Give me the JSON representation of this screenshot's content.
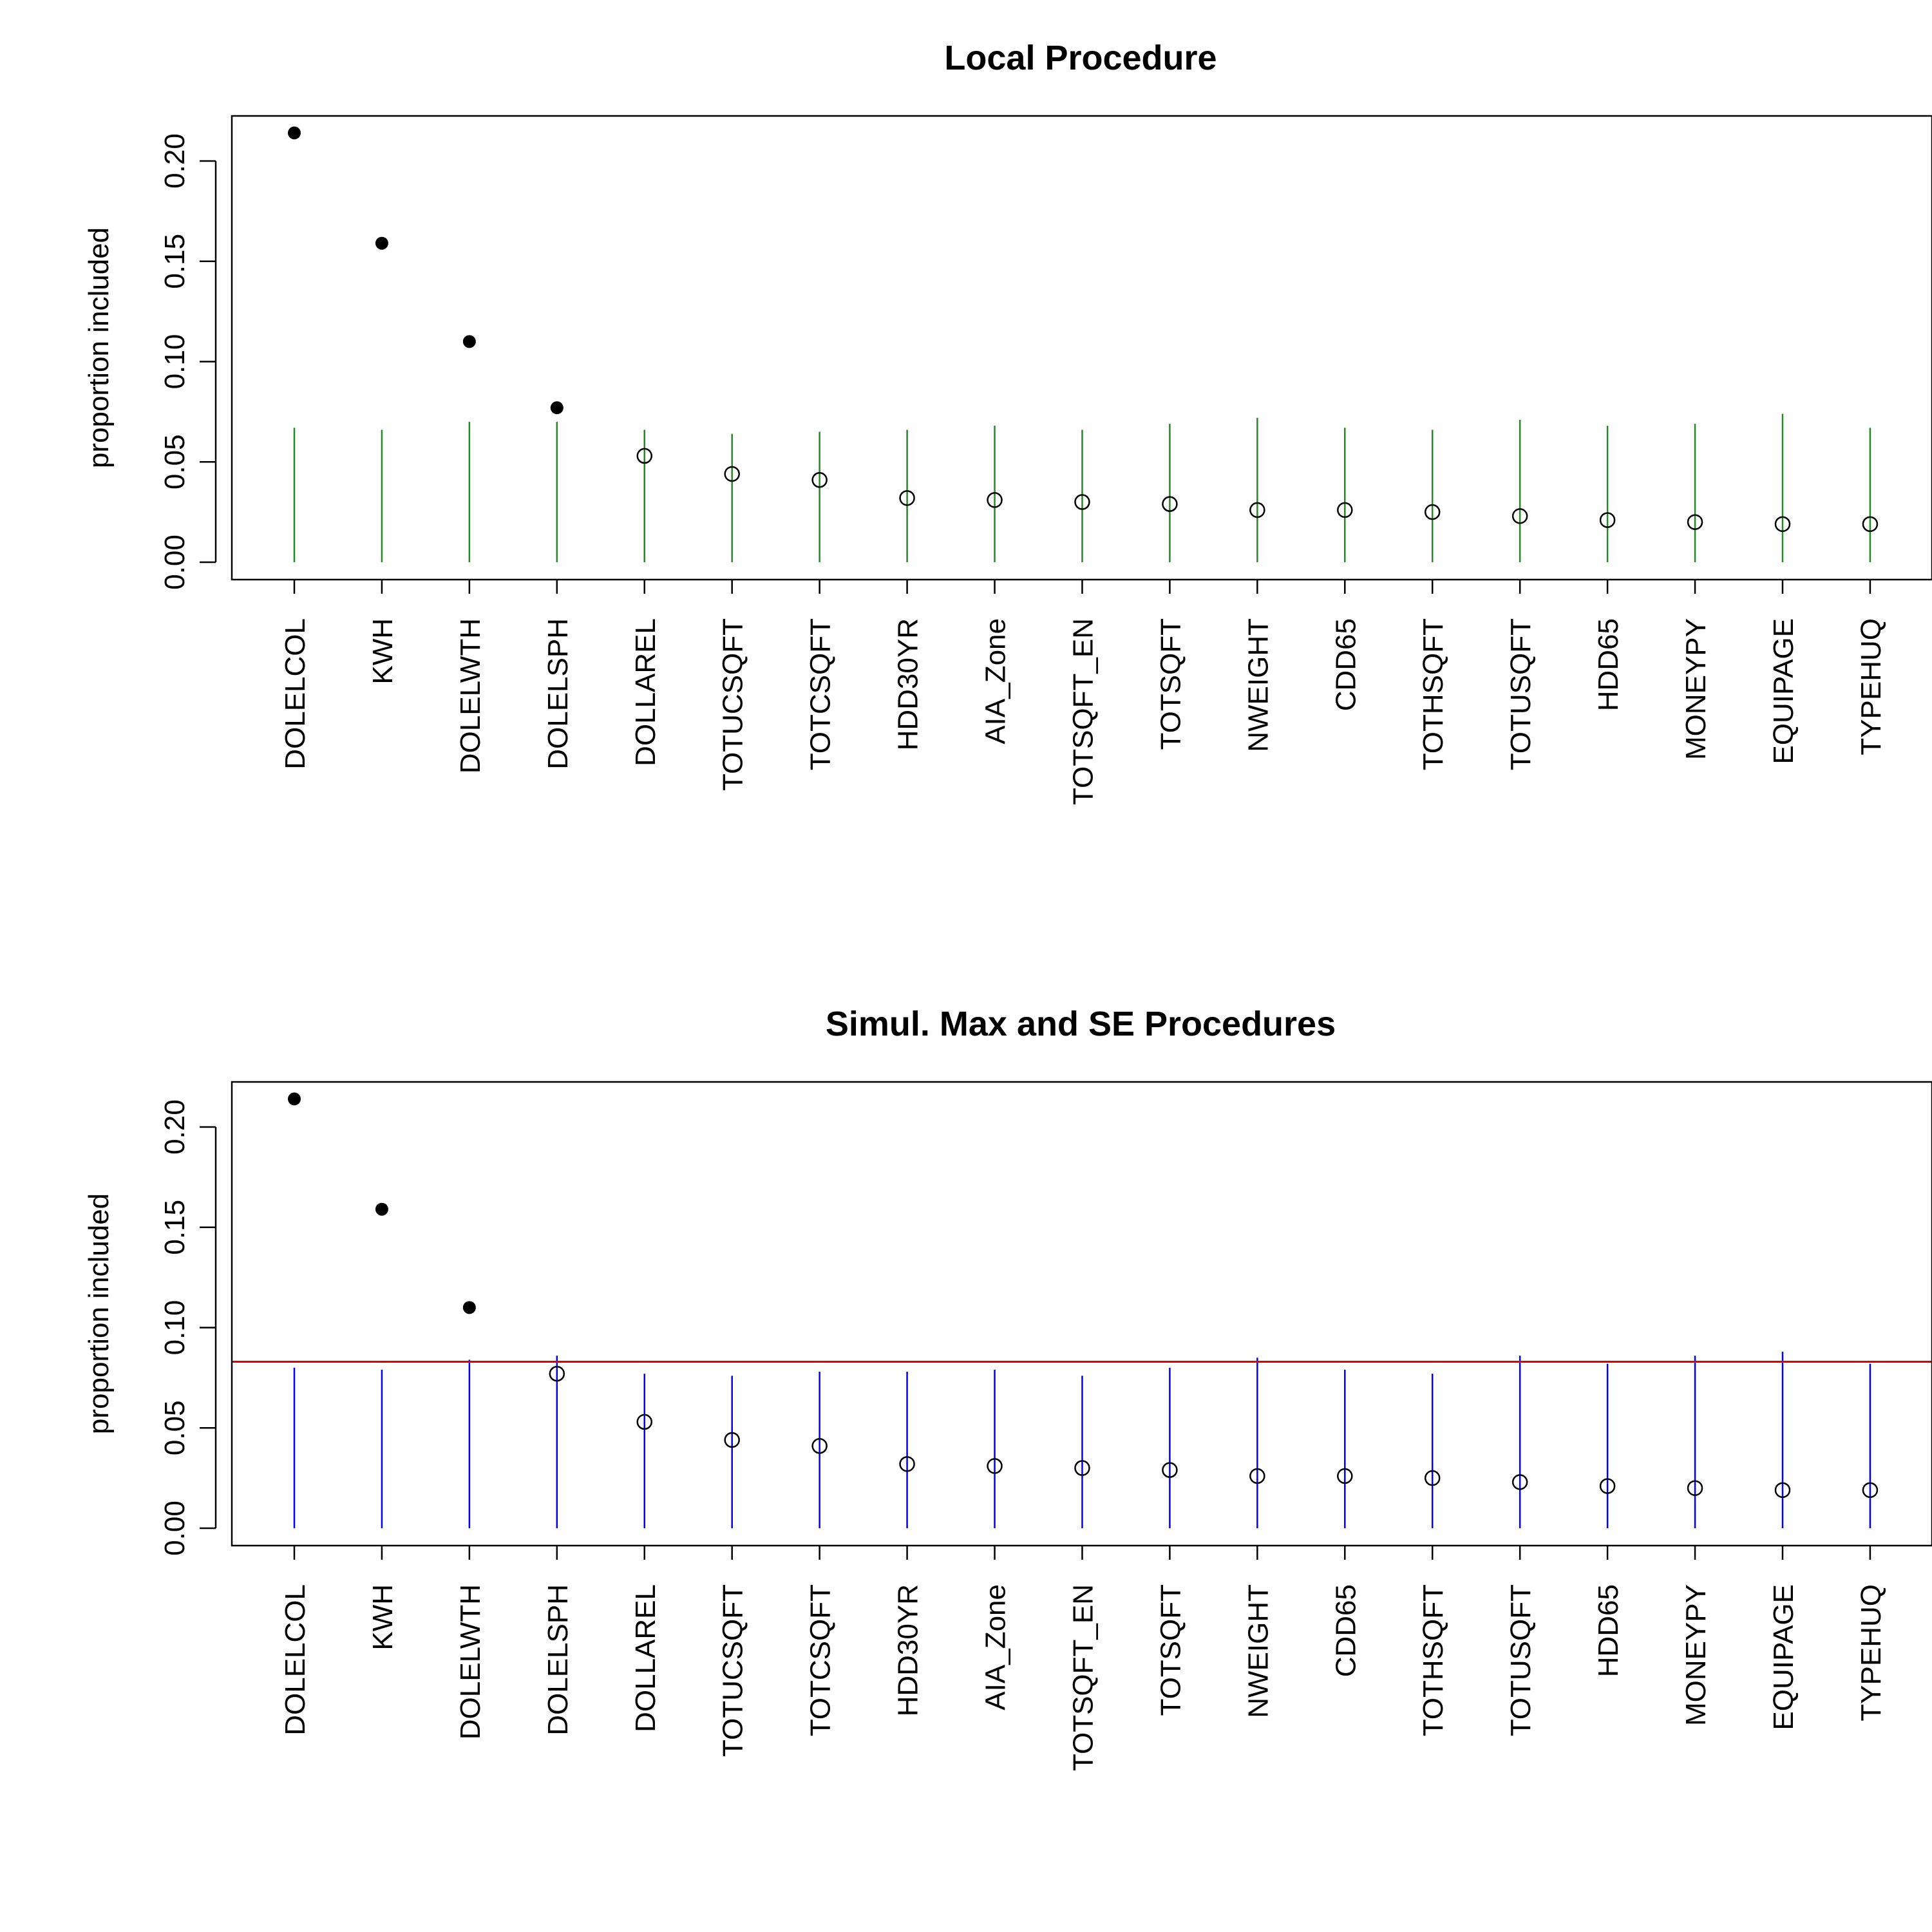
{
  "colors": {
    "local_threshold": "#228B22",
    "simul_threshold": "#0000FF",
    "se_line": "#E00000",
    "point": "#000000"
  },
  "chart_data": [
    {
      "type": "scatter",
      "title": "Local Procedure",
      "ylabel": "proportion included",
      "xlabel": "",
      "ylim": [
        0,
        0.2
      ],
      "yticks": [
        "0.00",
        "0.05",
        "0.10",
        "0.15",
        "0.20"
      ],
      "ytick_values": [
        0,
        0.05,
        0.1,
        0.15,
        0.2
      ],
      "categories": [
        "DOLELCOL",
        "KWH",
        "DOLELWTH",
        "DOLELSPH",
        "DOLLAREL",
        "TOTUCSQFT",
        "TOTCSQFT",
        "HDD30YR",
        "AIA_Zone",
        "TOTSQFT_EN",
        "TOTSQFT",
        "NWEIGHT",
        "CDD65",
        "TOTHSQFT",
        "TOTUSQFT",
        "HDD65",
        "MONEYPY",
        "EQUIPAGE",
        "TYPEHUQ"
      ],
      "values": [
        0.214,
        0.159,
        0.11,
        0.077,
        0.053,
        0.044,
        0.041,
        0.032,
        0.031,
        0.03,
        0.029,
        0.026,
        0.026,
        0.025,
        0.023,
        0.021,
        0.02,
        0.019,
        0.019
      ],
      "selected": [
        true,
        true,
        true,
        true,
        false,
        false,
        false,
        false,
        false,
        false,
        false,
        false,
        false,
        false,
        false,
        false,
        false,
        false,
        false
      ],
      "threshold_segments": [
        0.067,
        0.066,
        0.07,
        0.07,
        0.066,
        0.064,
        0.065,
        0.066,
        0.068,
        0.066,
        0.069,
        0.072,
        0.067,
        0.066,
        0.071,
        0.068,
        0.069,
        0.074,
        0.067
      ],
      "threshold_color": "local_threshold",
      "hline": null,
      "grid": false
    },
    {
      "type": "scatter",
      "title": "Simul. Max and SE Procedures",
      "ylabel": "proportion included",
      "xlabel": "",
      "ylim": [
        0,
        0.2
      ],
      "yticks": [
        "0.00",
        "0.05",
        "0.10",
        "0.15",
        "0.20"
      ],
      "ytick_values": [
        0,
        0.05,
        0.1,
        0.15,
        0.2
      ],
      "categories": [
        "DOLELCOL",
        "KWH",
        "DOLELWTH",
        "DOLELSPH",
        "DOLLAREL",
        "TOTUCSQFT",
        "TOTCSQFT",
        "HDD30YR",
        "AIA_Zone",
        "TOTSQFT_EN",
        "TOTSQFT",
        "NWEIGHT",
        "CDD65",
        "TOTHSQFT",
        "TOTUSQFT",
        "HDD65",
        "MONEYPY",
        "EQUIPAGE",
        "TYPEHUQ"
      ],
      "values": [
        0.214,
        0.159,
        0.11,
        0.077,
        0.053,
        0.044,
        0.041,
        0.032,
        0.031,
        0.03,
        0.029,
        0.026,
        0.026,
        0.025,
        0.023,
        0.021,
        0.02,
        0.019,
        0.019
      ],
      "selected": [
        true,
        true,
        true,
        false,
        false,
        false,
        false,
        false,
        false,
        false,
        false,
        false,
        false,
        false,
        false,
        false,
        false,
        false,
        false
      ],
      "threshold_segments": [
        0.08,
        0.079,
        0.084,
        0.086,
        0.077,
        0.076,
        0.078,
        0.078,
        0.079,
        0.076,
        0.08,
        0.085,
        0.079,
        0.077,
        0.086,
        0.082,
        0.086,
        0.088,
        0.082
      ],
      "threshold_color": "simul_threshold",
      "hline": 0.083,
      "grid": false
    }
  ]
}
